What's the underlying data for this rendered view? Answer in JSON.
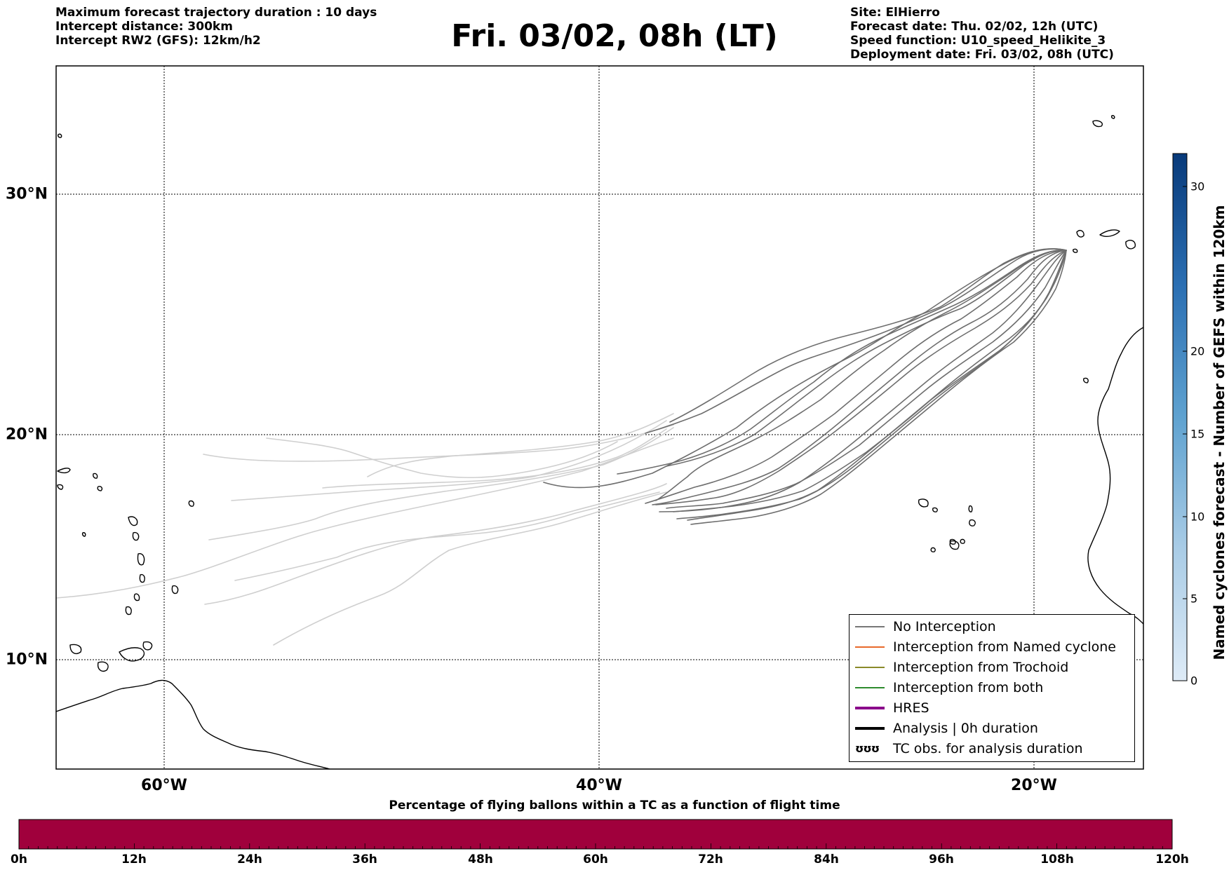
{
  "header": {
    "left_lines": [
      "Maximum forecast trajectory duration : 10 days",
      "Intercept distance: 300km",
      "Intercept RW2 (GFS):  12km/h2"
    ],
    "title": "Fri. 03/02, 08h (LT)",
    "right_lines": [
      "Site: ElHierro",
      "Forecast date: Thu. 02/02, 12h (UTC)",
      "Speed function: U10_speed_Helikite_3",
      "Deployment date: Fri. 03/02, 08h (UTC)"
    ]
  },
  "map": {
    "lon_labels": [
      "60°W",
      "40°W",
      "20°W"
    ],
    "lat_labels": [
      "30°N",
      "20°N",
      "10°N"
    ],
    "colors": {
      "no_interception": "#6e6e6e",
      "faded_trajectory": "#cfcfcf",
      "coastline": "#000000"
    }
  },
  "legend": {
    "items": [
      {
        "label": "No Interception",
        "color": "#777777",
        "width": 1.5
      },
      {
        "label": "Interception from Named cyclone",
        "color": "#e8692a",
        "width": 1.5
      },
      {
        "label": "Interception from Trochoid",
        "color": "#8a8a2a",
        "width": 1.5
      },
      {
        "label": "Interception from both",
        "color": "#2e8b2e",
        "width": 1.5
      },
      {
        "label": "HRES",
        "color": "#8b0a8b",
        "width": 4
      },
      {
        "label": "Analysis | 0h duration",
        "color": "#000000",
        "width": 4
      }
    ],
    "tc_symbol": "ʊʊʊ",
    "tc_label": "TC obs. for analysis duration"
  },
  "colorbar": {
    "title": "Named cyclones forecast - Number of GEFS within 120km",
    "ticks": [
      "0",
      "5",
      "10",
      "15",
      "20",
      "30"
    ]
  },
  "bottom_bar": {
    "label": "Percentage of flying ballons within a TC as a function of flight time",
    "color": "#a0003c",
    "ticks": [
      "0h",
      "12h",
      "24h",
      "36h",
      "48h",
      "60h",
      "72h",
      "84h",
      "96h",
      "108h",
      "120h"
    ]
  }
}
